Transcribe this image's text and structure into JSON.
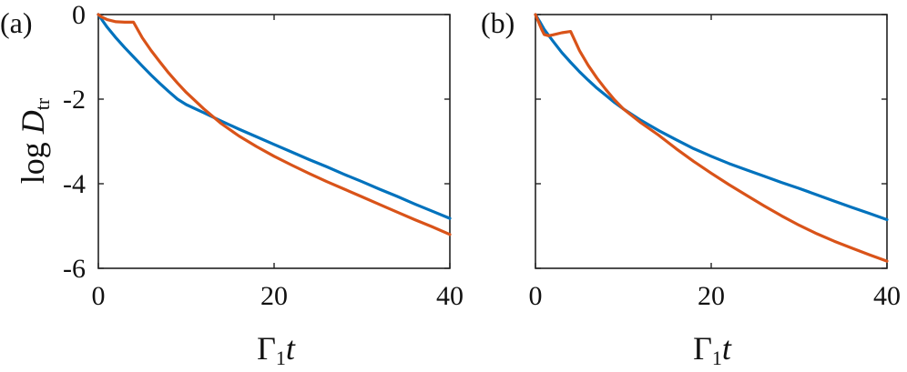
{
  "chart_data": [
    {
      "type": "line",
      "panel_label": "(a)",
      "xlim": [
        0,
        40
      ],
      "ylim": [
        -6,
        0
      ],
      "xticks": [
        "0",
        "20",
        "40"
      ],
      "yticks": [
        "0",
        "-2",
        "-4",
        "-6"
      ],
      "xlabel": {
        "symbol": "Γ",
        "sub": "1",
        "var": "t"
      },
      "ylabel": {
        "prefix": "log",
        "var": "D",
        "sub": "tr"
      },
      "grid": false,
      "series": [
        {
          "color": "#0072BD",
          "x": [
            0,
            0.5,
            1,
            2,
            3,
            4,
            5,
            6,
            7,
            8,
            9,
            10,
            12,
            14,
            16,
            18,
            20,
            22,
            24,
            26,
            28,
            30,
            32,
            34,
            36,
            38,
            40
          ],
          "y": [
            0,
            -0.15,
            -0.3,
            -0.55,
            -0.78,
            -1.0,
            -1.22,
            -1.43,
            -1.63,
            -1.82,
            -2.0,
            -2.13,
            -2.32,
            -2.52,
            -2.71,
            -2.89,
            -3.07,
            -3.25,
            -3.43,
            -3.6,
            -3.78,
            -3.95,
            -4.13,
            -4.3,
            -4.48,
            -4.65,
            -4.82
          ]
        },
        {
          "color": "#D95319",
          "x": [
            0,
            0.3,
            1,
            2,
            3,
            4,
            5,
            6,
            7,
            8,
            9,
            10,
            12,
            14,
            16,
            18,
            20,
            22,
            24,
            26,
            28,
            30,
            32,
            34,
            36,
            38,
            40
          ],
          "y": [
            0,
            -0.05,
            -0.12,
            -0.17,
            -0.18,
            -0.18,
            -0.55,
            -0.85,
            -1.12,
            -1.38,
            -1.62,
            -1.84,
            -2.23,
            -2.58,
            -2.87,
            -3.12,
            -3.35,
            -3.56,
            -3.76,
            -3.95,
            -4.13,
            -4.31,
            -4.49,
            -4.67,
            -4.85,
            -5.02,
            -5.2
          ]
        }
      ]
    },
    {
      "type": "line",
      "panel_label": "(b)",
      "xlim": [
        0,
        40
      ],
      "ylim": [
        -6,
        0
      ],
      "xticks": [
        "0",
        "20",
        "40"
      ],
      "yticks": [],
      "xlabel": {
        "symbol": "Γ",
        "sub": "1",
        "var": "t"
      },
      "grid": false,
      "series": [
        {
          "color": "#0072BD",
          "x": [
            0,
            0.5,
            1,
            2,
            3,
            4,
            5,
            6,
            7,
            8,
            9,
            10,
            12,
            14,
            16,
            18,
            20,
            22,
            24,
            26,
            28,
            30,
            32,
            34,
            36,
            38,
            40
          ],
          "y": [
            0,
            -0.17,
            -0.35,
            -0.63,
            -0.9,
            -1.13,
            -1.35,
            -1.55,
            -1.74,
            -1.91,
            -2.08,
            -2.23,
            -2.5,
            -2.74,
            -2.96,
            -3.17,
            -3.35,
            -3.52,
            -3.67,
            -3.82,
            -3.97,
            -4.11,
            -4.26,
            -4.41,
            -4.56,
            -4.7,
            -4.85
          ]
        },
        {
          "color": "#D95319",
          "x": [
            0,
            0.3,
            0.7,
            1,
            1.5,
            2,
            3,
            4,
            5,
            6,
            7,
            8,
            9,
            10,
            12,
            14,
            16,
            18,
            20,
            22,
            24,
            26,
            28,
            30,
            32,
            34,
            36,
            38,
            40
          ],
          "y": [
            0,
            -0.15,
            -0.35,
            -0.47,
            -0.5,
            -0.48,
            -0.43,
            -0.4,
            -0.85,
            -1.2,
            -1.5,
            -1.77,
            -2.02,
            -2.23,
            -2.56,
            -2.85,
            -3.17,
            -3.47,
            -3.75,
            -4.02,
            -4.27,
            -4.52,
            -4.76,
            -4.98,
            -5.18,
            -5.36,
            -5.52,
            -5.68,
            -5.83
          ]
        }
      ]
    }
  ]
}
